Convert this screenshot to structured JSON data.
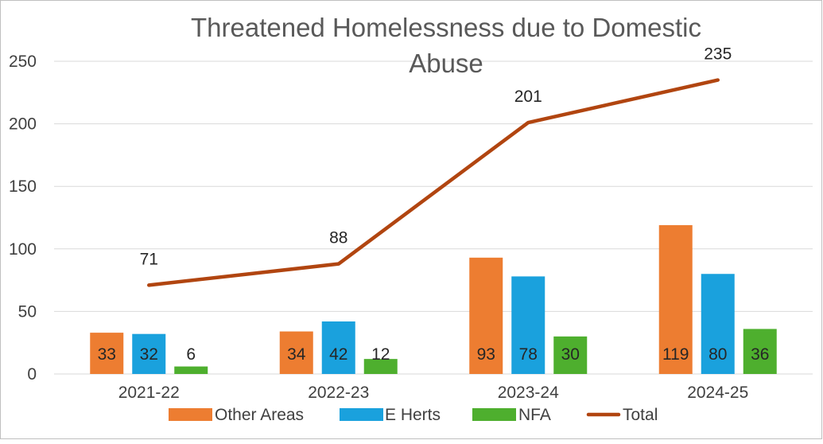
{
  "chart_data": {
    "type": "bar",
    "title": "Threatened Homelessness due to Domestic Abuse",
    "categories": [
      "2021-22",
      "2022-23",
      "2023-24",
      "2024-25"
    ],
    "ylim": [
      0,
      250
    ],
    "yticks": [
      0,
      50,
      100,
      150,
      200,
      250
    ],
    "grid": true,
    "legend_position": "bottom",
    "series": [
      {
        "name": "Other Areas",
        "type": "bar",
        "color": "#ED7D31",
        "values": [
          33,
          34,
          93,
          119
        ]
      },
      {
        "name": "E Herts",
        "type": "bar",
        "color": "#1AA1DD",
        "values": [
          32,
          42,
          78,
          80
        ]
      },
      {
        "name": "NFA",
        "type": "bar",
        "color": "#4EAF2E",
        "values": [
          6,
          12,
          30,
          36
        ]
      },
      {
        "name": "Total",
        "type": "line",
        "color": "#B14510",
        "values": [
          71,
          88,
          201,
          235
        ]
      }
    ]
  }
}
